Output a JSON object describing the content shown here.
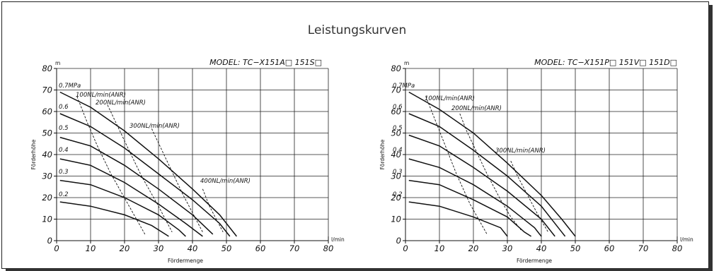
{
  "title": "Leistungskurven",
  "chart_data": [
    {
      "type": "line",
      "model": "MODEL: TC−X151A□  151S□",
      "ylabel": "Förderhöhe",
      "yunit": "m",
      "xlabel": "Fördermenge",
      "xunit": "l/min",
      "xlim": [
        0,
        80
      ],
      "ylim": [
        0,
        80
      ],
      "xticks": [
        "0",
        "10",
        "20",
        "30",
        "40",
        "50",
        "60",
        "70",
        "80"
      ],
      "yticks": [
        "0",
        "10",
        "20",
        "30",
        "40",
        "50",
        "60",
        "70",
        "80"
      ],
      "grid": true,
      "series": [
        {
          "name": "0.7MPa",
          "points": [
            [
              1,
              69
            ],
            [
              10,
              62
            ],
            [
              20,
              51
            ],
            [
              30,
              38
            ],
            [
              40,
              24
            ],
            [
              48,
              12
            ],
            [
              53,
              2
            ]
          ]
        },
        {
          "name": "0.6",
          "points": [
            [
              1,
              59
            ],
            [
              10,
              53
            ],
            [
              20,
              43
            ],
            [
              30,
              31
            ],
            [
              40,
              19
            ],
            [
              48,
              8
            ],
            [
              51,
              2
            ]
          ]
        },
        {
          "name": "0.5",
          "points": [
            [
              1,
              48
            ],
            [
              10,
              44
            ],
            [
              20,
              35
            ],
            [
              30,
              24
            ],
            [
              40,
              12
            ],
            [
              46,
              3
            ]
          ]
        },
        {
          "name": "0.4",
          "points": [
            [
              1,
              38
            ],
            [
              10,
              35
            ],
            [
              20,
              27
            ],
            [
              30,
              17
            ],
            [
              38,
              8
            ],
            [
              43,
              2
            ]
          ]
        },
        {
          "name": "0.3",
          "points": [
            [
              1,
              28
            ],
            [
              10,
              26
            ],
            [
              20,
              20
            ],
            [
              30,
              12
            ],
            [
              36,
              5
            ],
            [
              38,
              2
            ]
          ]
        },
        {
          "name": "0.2",
          "points": [
            [
              1,
              18
            ],
            [
              10,
              16
            ],
            [
              20,
              12
            ],
            [
              28,
              7
            ],
            [
              33,
              2
            ]
          ]
        }
      ],
      "flow_lines": [
        {
          "name": "100NL/min(ANR)",
          "points": [
            [
              6,
              67
            ],
            [
              9,
              55
            ],
            [
              12,
              44
            ],
            [
              16,
              31
            ],
            [
              21,
              17
            ],
            [
              26,
              3
            ]
          ]
        },
        {
          "name": "200NL/min(ANR)",
          "points": [
            [
              15,
              63
            ],
            [
              18,
              53
            ],
            [
              21,
              43
            ],
            [
              25,
              30
            ],
            [
              30,
              16
            ],
            [
              34,
              4
            ]
          ]
        },
        {
          "name": "300NL/min(ANR)",
          "points": [
            [
              28,
              52
            ],
            [
              31,
              42
            ],
            [
              34,
              32
            ],
            [
              37,
              22
            ],
            [
              40,
              13
            ],
            [
              43,
              4
            ]
          ]
        },
        {
          "name": "400NL/min(ANR)",
          "points": [
            [
              43,
              24
            ],
            [
              45,
              16
            ],
            [
              47,
              10
            ],
            [
              49,
              4
            ]
          ]
        }
      ]
    },
    {
      "type": "line",
      "model": "MODEL: TC−X151P□  151V□  151D□",
      "ylabel": "Förderhöhe",
      "yunit": "m",
      "xlabel": "Fördermenge",
      "xunit": "l/min",
      "xlim": [
        0,
        80
      ],
      "ylim": [
        0,
        80
      ],
      "xticks": [
        "0",
        "10",
        "20",
        "30",
        "40",
        "50",
        "60",
        "70",
        "80"
      ],
      "yticks": [
        "0",
        "10",
        "20",
        "30",
        "40",
        "50",
        "60",
        "70",
        "80"
      ],
      "grid": true,
      "series": [
        {
          "name": "0.7MPa",
          "points": [
            [
              1,
              69
            ],
            [
              10,
              61
            ],
            [
              20,
              50
            ],
            [
              30,
              36
            ],
            [
              40,
              21
            ],
            [
              46,
              10
            ],
            [
              50,
              2
            ]
          ]
        },
        {
          "name": "0.6",
          "points": [
            [
              1,
              59
            ],
            [
              10,
              53
            ],
            [
              20,
              42
            ],
            [
              30,
              30
            ],
            [
              40,
              16
            ],
            [
              46,
              4
            ],
            [
              47,
              2
            ]
          ]
        },
        {
          "name": "0.5",
          "points": [
            [
              1,
              49
            ],
            [
              10,
              44
            ],
            [
              20,
              34
            ],
            [
              30,
              23
            ],
            [
              40,
              10
            ],
            [
              44,
              2
            ]
          ]
        },
        {
          "name": "0.4",
          "points": [
            [
              1,
              38
            ],
            [
              10,
              34
            ],
            [
              20,
              26
            ],
            [
              30,
              16
            ],
            [
              38,
              6
            ],
            [
              40,
              2
            ]
          ]
        },
        {
          "name": "0.3",
          "points": [
            [
              1,
              28
            ],
            [
              10,
              26
            ],
            [
              20,
              19
            ],
            [
              30,
              11
            ],
            [
              35,
              4
            ],
            [
              37,
              2
            ]
          ]
        },
        {
          "name": "0.2",
          "points": [
            [
              1,
              18
            ],
            [
              10,
              16
            ],
            [
              20,
              11
            ],
            [
              28,
              6
            ],
            [
              30,
              2
            ]
          ]
        }
      ],
      "flow_lines": [
        {
          "name": "100NL/min(ANR)",
          "points": [
            [
              6,
              67
            ],
            [
              9,
              55
            ],
            [
              12,
              43
            ],
            [
              15,
              31
            ],
            [
              19,
              17
            ],
            [
              24,
              3
            ]
          ]
        },
        {
          "name": "200NL/min(ANR)",
          "points": [
            [
              16,
              59
            ],
            [
              18,
              51
            ],
            [
              21,
              41
            ],
            [
              24,
              31
            ],
            [
              28,
              19
            ],
            [
              31,
              11
            ],
            [
              34,
              5
            ]
          ]
        },
        {
          "name": "300NL/min(ANR)",
          "points": [
            [
              31,
              37
            ],
            [
              33,
              30
            ],
            [
              35,
              24
            ],
            [
              37,
              18
            ],
            [
              39,
              12
            ],
            [
              42,
              4
            ]
          ]
        }
      ]
    }
  ]
}
